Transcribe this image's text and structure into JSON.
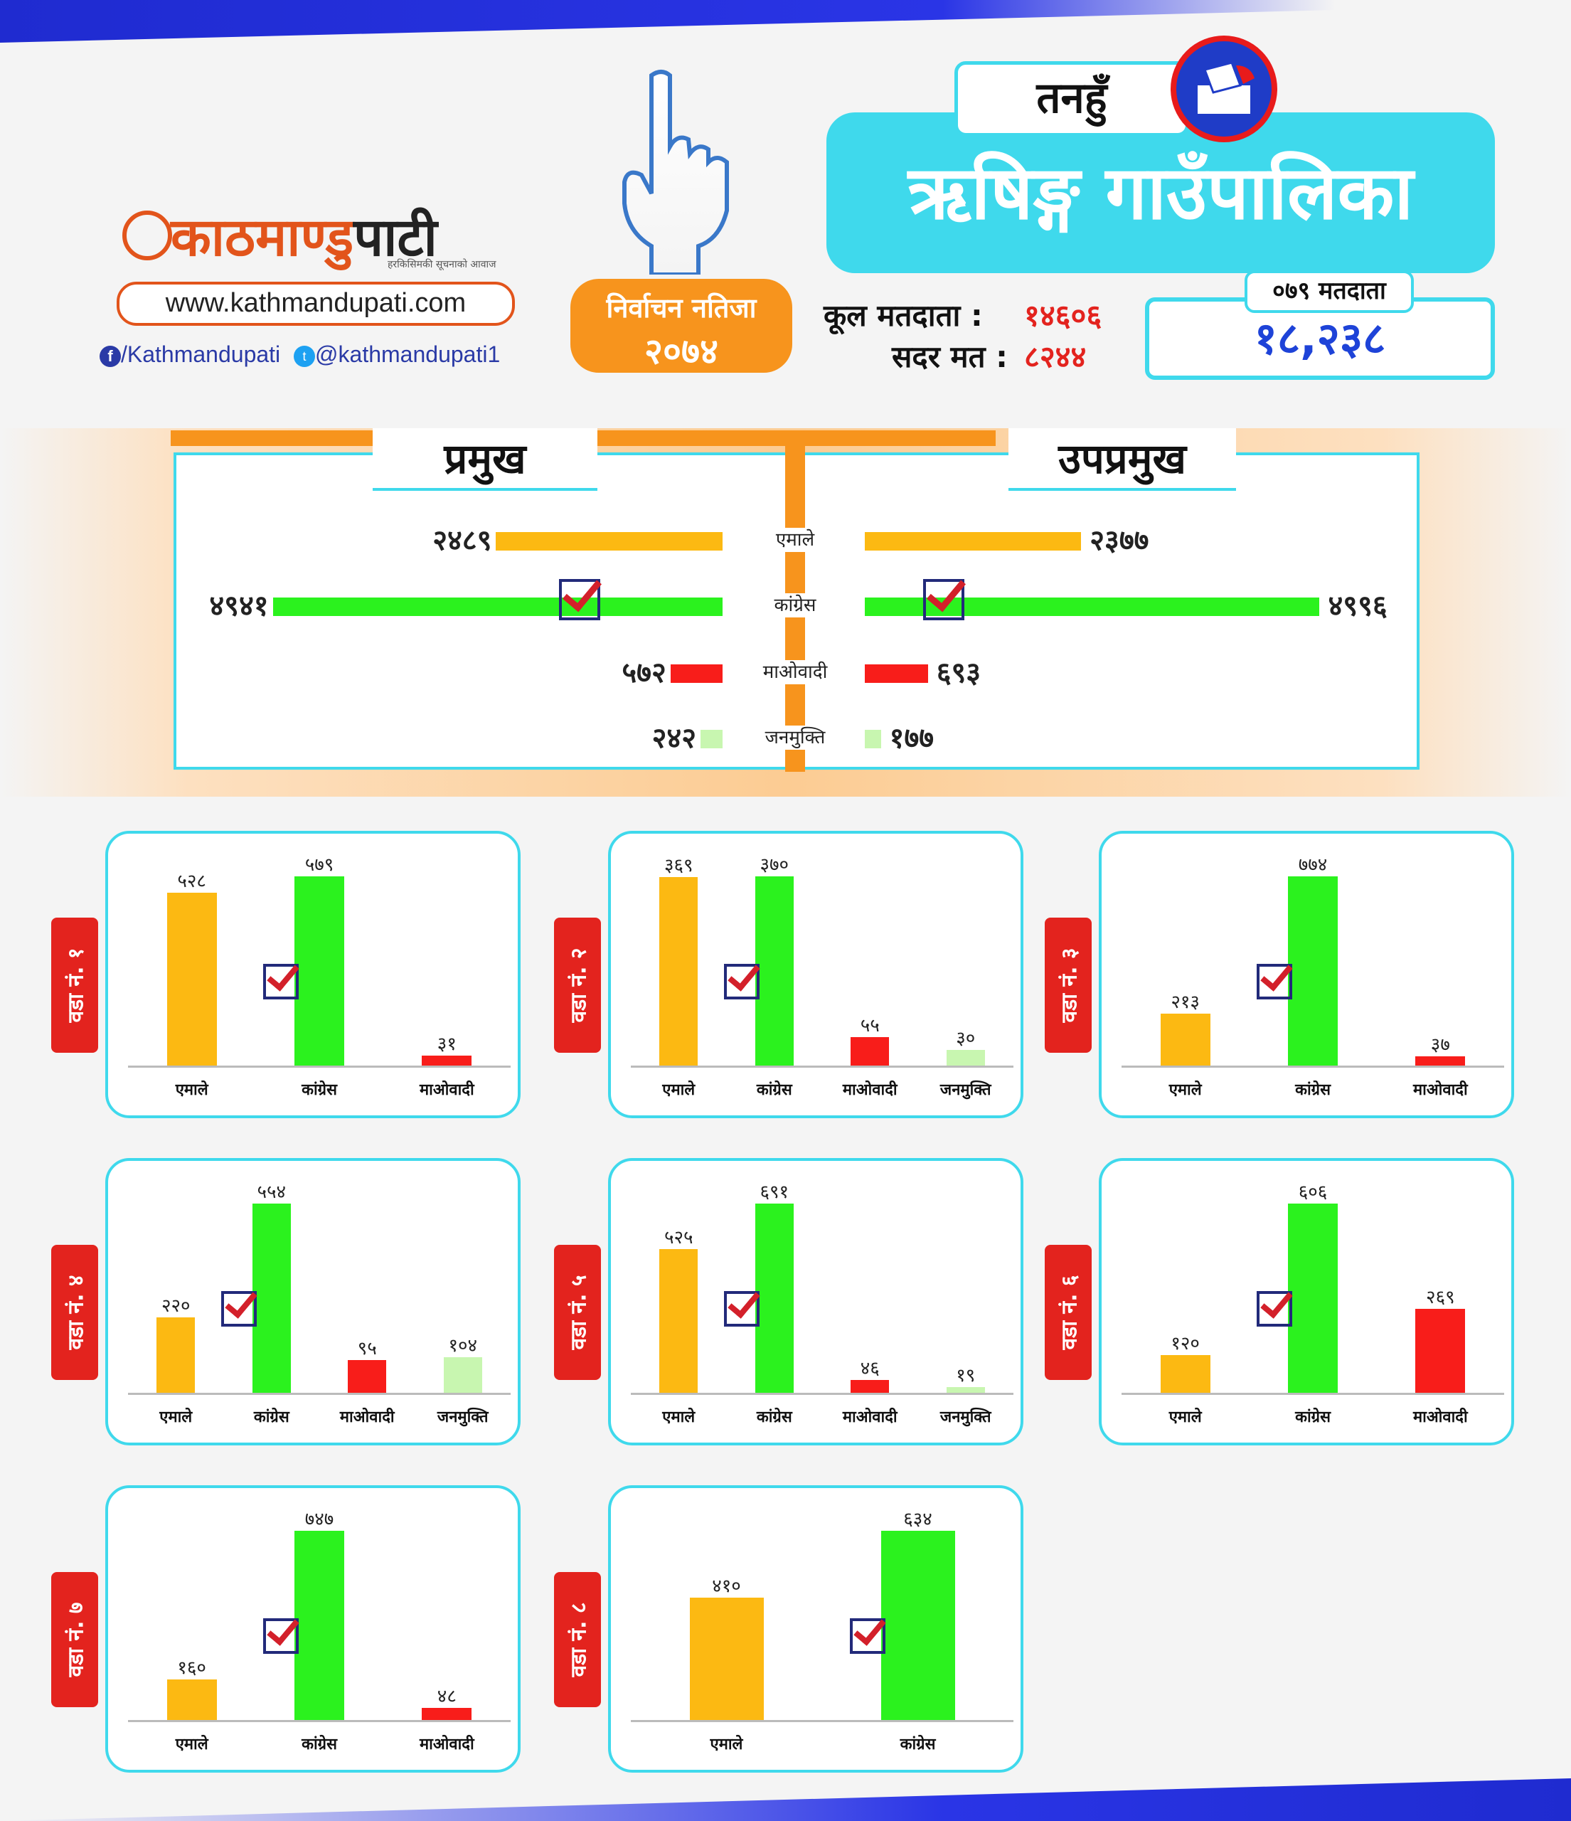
{
  "header": {
    "logo_name_part1": "काठमाण्डु",
    "logo_name_part2": "पाटी",
    "logo_tagline": "हरकिसिमकी सूचनाको आवाज",
    "website": "www.kathmandupati.com",
    "facebook": "/Kathmandupati",
    "twitter": "@kathmandupati1",
    "badge_title": "निर्वाचन नतिजा",
    "badge_year": "२०७४",
    "district": "तनहुँ",
    "municipality": "ऋषिङ्ग गाउँपालिका",
    "total_voters_label": "कूल मतदाता :",
    "total_voters": "१४६०६",
    "valid_votes_label": "सदर मत :",
    "valid_votes": "८२४४",
    "voters_079_label": "०७९ मतदाता",
    "voters_079": "१८,२३८"
  },
  "colors": {
    "uml": "#fcb912",
    "congress": "#2bf21e",
    "maoist": "#f81d1a",
    "janamukti": "#c8f6b0",
    "accent_cyan": "#3fd9ec",
    "accent_orange": "#f7941d"
  },
  "chart_data": [
    {
      "type": "bar",
      "title": "प्रमुख",
      "categories": [
        "एमाले",
        "कांग्रेस",
        "माओवादी",
        "जनमुक्ति"
      ],
      "values": [
        2489,
        4941,
        572,
        242
      ],
      "value_labels": [
        "२४८९",
        "४९४१",
        "५७२",
        "२४२"
      ],
      "winner": "कांग्रेस"
    },
    {
      "type": "bar",
      "title": "उपप्रमुख",
      "categories": [
        "एमाले",
        "कांग्रेस",
        "माओवादी",
        "जनमुक्ति"
      ],
      "values": [
        2377,
        4996,
        693,
        177
      ],
      "value_labels": [
        "२३७७",
        "४९९६",
        "६९३",
        "१७७"
      ],
      "winner": "कांग्रेस"
    },
    {
      "type": "bar",
      "title": "वडा नं. १",
      "categories": [
        "एमाले",
        "कांग्रेस",
        "माओवादी"
      ],
      "values": [
        528,
        579,
        31
      ],
      "value_labels": [
        "५२८",
        "५७९",
        "३१"
      ],
      "winner": "कांग्रेस"
    },
    {
      "type": "bar",
      "title": "वडा नं. २",
      "categories": [
        "एमाले",
        "कांग्रेस",
        "माओवादी",
        "जनमुक्ति"
      ],
      "values": [
        369,
        370,
        55,
        30
      ],
      "value_labels": [
        "३६९",
        "३७०",
        "५५",
        "३०"
      ],
      "winner": "कांग्रेस"
    },
    {
      "type": "bar",
      "title": "वडा नं. ३",
      "categories": [
        "एमाले",
        "कांग्रेस",
        "माओवादी"
      ],
      "values": [
        213,
        774,
        37
      ],
      "value_labels": [
        "२१३",
        "७७४",
        "३७"
      ],
      "winner": "कांग्रेस"
    },
    {
      "type": "bar",
      "title": "वडा नं. ४",
      "categories": [
        "एमाले",
        "कांग्रेस",
        "माओवादी",
        "जनमुक्ति"
      ],
      "values": [
        220,
        554,
        95,
        104
      ],
      "value_labels": [
        "२२०",
        "५५४",
        "९५",
        "१०४"
      ],
      "winner": "कांग्रेस"
    },
    {
      "type": "bar",
      "title": "वडा नं. ५",
      "categories": [
        "एमाले",
        "कांग्रेस",
        "माओवादी",
        "जनमुक्ति"
      ],
      "values": [
        525,
        691,
        46,
        19
      ],
      "value_labels": [
        "५२५",
        "६९१",
        "४६",
        "१९"
      ],
      "winner": "कांग्रेस"
    },
    {
      "type": "bar",
      "title": "वडा नं. ६",
      "categories": [
        "एमाले",
        "कांग्रेस",
        "माओवादी"
      ],
      "values": [
        120,
        606,
        269
      ],
      "value_labels": [
        "१२०",
        "६०६",
        "२६९"
      ],
      "winner": "कांग्रेस"
    },
    {
      "type": "bar",
      "title": "वडा नं. ७",
      "categories": [
        "एमाले",
        "कांग्रेस",
        "माओवादी"
      ],
      "values": [
        160,
        747,
        48
      ],
      "value_labels": [
        "१६०",
        "७४७",
        "४८"
      ],
      "winner": "कांग्रेस"
    },
    {
      "type": "bar",
      "title": "वडा नं. ८",
      "categories": [
        "एमाले",
        "कांग्रेस"
      ],
      "values": [
        410,
        634
      ],
      "value_labels": [
        "४१०",
        "६३४"
      ],
      "winner": "कांग्रेस"
    }
  ]
}
